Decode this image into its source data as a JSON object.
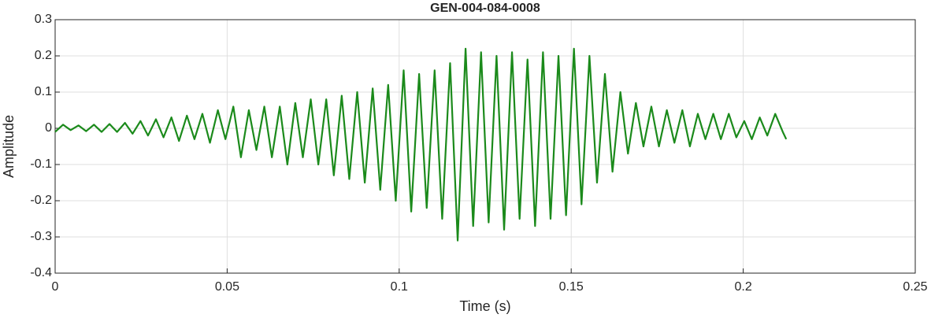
{
  "chart_data": {
    "type": "line",
    "title": "GEN-004-084-0008",
    "x_label": "Time (s)",
    "y_label": "Amplitude",
    "series": [
      {
        "name": "Amplitude",
        "color": "#1b8a1b",
        "x": [
          0,
          0.0023,
          0.0045,
          0.0068,
          0.009,
          0.0113,
          0.0135,
          0.0158,
          0.018,
          0.0203,
          0.0225,
          0.0248,
          0.027,
          0.0293,
          0.0315,
          0.0338,
          0.036,
          0.0383,
          0.0405,
          0.0428,
          0.045,
          0.0473,
          0.0495,
          0.0518,
          0.054,
          0.0563,
          0.0585,
          0.0608,
          0.063,
          0.0653,
          0.0675,
          0.0698,
          0.072,
          0.0743,
          0.0765,
          0.0788,
          0.081,
          0.0833,
          0.0855,
          0.0878,
          0.09,
          0.0923,
          0.0945,
          0.0968,
          0.099,
          0.1013,
          0.1035,
          0.1058,
          0.108,
          0.1103,
          0.1125,
          0.1148,
          0.117,
          0.1193,
          0.1215,
          0.1238,
          0.126,
          0.1283,
          0.1305,
          0.1328,
          0.135,
          0.1373,
          0.1395,
          0.1418,
          0.144,
          0.1463,
          0.1485,
          0.1508,
          0.153,
          0.1553,
          0.1575,
          0.1598,
          0.162,
          0.1643,
          0.1665,
          0.1688,
          0.171,
          0.1733,
          0.1755,
          0.1778,
          0.18,
          0.1823,
          0.1845,
          0.1868,
          0.189,
          0.1913,
          0.1935,
          0.1958,
          0.198,
          0.2003,
          0.2025,
          0.2048,
          0.207,
          0.2093,
          0.2115,
          0.2125
        ],
        "values": [
          -0.01,
          0.01,
          -0.005,
          0.008,
          -0.008,
          0.01,
          -0.01,
          0.012,
          -0.01,
          0.015,
          -0.015,
          0.02,
          -0.02,
          0.025,
          -0.025,
          0.03,
          -0.035,
          0.035,
          -0.03,
          0.04,
          -0.04,
          0.05,
          -0.03,
          0.06,
          -0.08,
          0.05,
          -0.06,
          0.06,
          -0.08,
          0.06,
          -0.1,
          0.07,
          -0.08,
          0.08,
          -0.1,
          0.08,
          -0.13,
          0.09,
          -0.14,
          0.1,
          -0.15,
          0.11,
          -0.17,
          0.12,
          -0.2,
          0.16,
          -0.23,
          0.15,
          -0.22,
          0.16,
          -0.25,
          0.18,
          -0.31,
          0.22,
          -0.27,
          0.21,
          -0.26,
          0.2,
          -0.28,
          0.21,
          -0.25,
          0.19,
          -0.27,
          0.21,
          -0.25,
          0.2,
          -0.24,
          0.22,
          -0.21,
          0.2,
          -0.15,
          0.15,
          -0.12,
          0.1,
          -0.07,
          0.07,
          -0.05,
          0.06,
          -0.05,
          0.05,
          -0.04,
          0.05,
          -0.05,
          0.04,
          -0.03,
          0.04,
          -0.03,
          0.04,
          -0.025,
          0.02,
          -0.03,
          0.03,
          -0.02,
          0.04,
          -0.01,
          -0.03
        ]
      }
    ],
    "xlim": [
      0,
      0.25
    ],
    "xticks": [
      0,
      0.05,
      0.1,
      0.15,
      0.2,
      0.25
    ],
    "ylim": [
      -0.4,
      0.3
    ],
    "yticks": [
      -0.4,
      -0.3,
      -0.2,
      -0.1,
      0,
      0.1,
      0.2,
      0.3
    ],
    "grid": true
  }
}
